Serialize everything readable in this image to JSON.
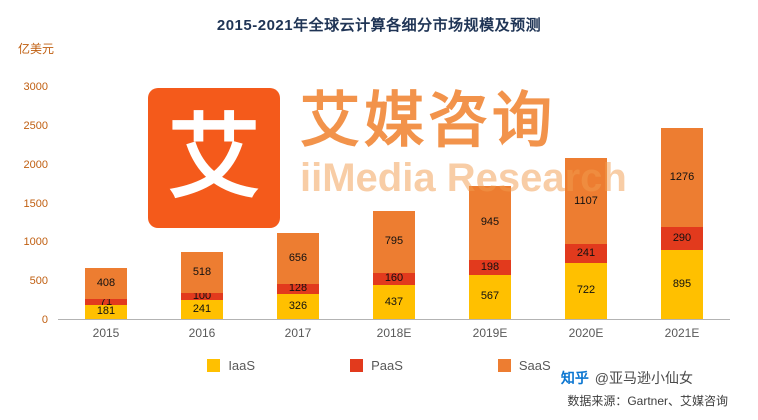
{
  "title": "2015-2021年全球云计算各细分市场规模及预测",
  "y_axis_unit": "亿美元",
  "chart_data": {
    "type": "bar",
    "stacked": true,
    "title": "2015-2021年全球云计算各细分市场规模及预测",
    "ylabel": "亿美元",
    "xlabel": "",
    "categories": [
      "2015",
      "2016",
      "2017",
      "2018E",
      "2019E",
      "2020E",
      "2021E"
    ],
    "series": [
      {
        "name": "IaaS",
        "color": "#FFC000",
        "values": [
          181,
          241,
          326,
          437,
          567,
          722,
          895
        ]
      },
      {
        "name": "PaaS",
        "color": "#E23A1D",
        "values": [
          71,
          100,
          128,
          160,
          198,
          241,
          290
        ]
      },
      {
        "name": "SaaS",
        "color": "#ED7D31",
        "values": [
          408,
          518,
          656,
          795,
          945,
          1107,
          1276
        ]
      }
    ],
    "ylim": [
      0,
      3000
    ],
    "yticks": [
      0,
      500,
      1000,
      1500,
      2000,
      2500,
      3000
    ],
    "grid": false,
    "legend_position": "bottom"
  },
  "watermark": {
    "logo_text": "艾",
    "brand_cn": "艾媒咨询",
    "brand_en": "iiMedia Research"
  },
  "footer": {
    "credit_platform": "知乎",
    "credit_handle": "@亚马逊小仙女",
    "source": "数据来源：Gartner、艾媒咨询"
  }
}
